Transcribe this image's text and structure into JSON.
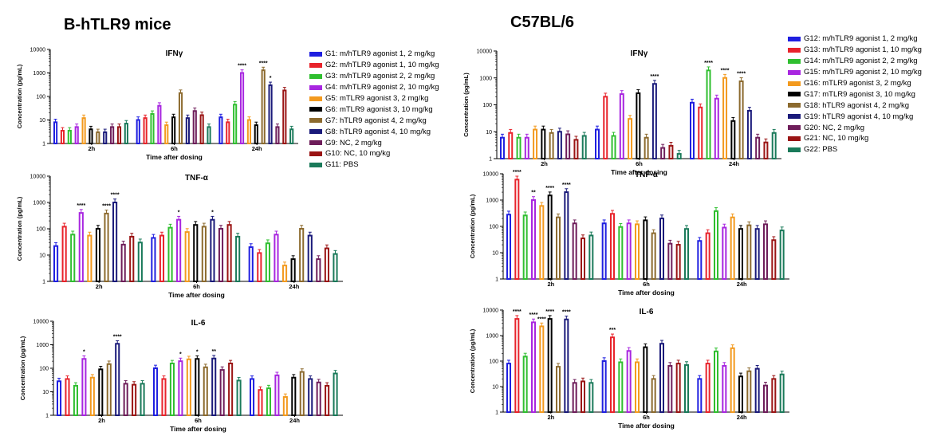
{
  "panel_titles": {
    "left": "B-hTLR9 mice",
    "right": "C57BL/6"
  },
  "legend_left": [
    {
      "label": "G1: m/hTLR9 agonist 1, 2 mg/kg",
      "color": "#1f1fe0"
    },
    {
      "label": "G2: m/hTLR9 agonist 1, 10 mg/kg",
      "color": "#e8232b"
    },
    {
      "label": "G3: m/hTLR9 agonist 2, 2 mg/kg",
      "color": "#2fbf2f"
    },
    {
      "label": "G4: m/hTLR9 agonist 2, 10 mg/kg",
      "color": "#a826e0"
    },
    {
      "label": "G5: mTLR9 agonist 3, 2 mg/kg",
      "color": "#f39a1e"
    },
    {
      "label": "G6: mTLR9 agonist 3, 10 mg/kg",
      "color": "#000000"
    },
    {
      "label": "G7: hTLR9 agonist 4, 2 mg/kg",
      "color": "#8c6a2e"
    },
    {
      "label": "G8: hTLR9 agonist 4, 10 mg/kg",
      "color": "#1a1a7a"
    },
    {
      "label": "G9: NC, 2 mg/kg",
      "color": "#6e1d5a"
    },
    {
      "label": "G10: NC, 10 mg/kg",
      "color": "#9a1414"
    },
    {
      "label": "G11: PBS",
      "color": "#1a7a5a"
    }
  ],
  "legend_right": [
    {
      "label": "G12: m/hTLR9 agonist 1, 2 mg/kg",
      "color": "#1f1fe0"
    },
    {
      "label": "G13: m/hTLR9 agonist 1, 10 mg/kg",
      "color": "#e8232b"
    },
    {
      "label": "G14: m/hTLR9 agonist 2, 2 mg/kg",
      "color": "#2fbf2f"
    },
    {
      "label": "G15: m/hTLR9 agonist 2, 10 mg/kg",
      "color": "#a826e0"
    },
    {
      "label": "G16: mTLR9 agonist 3, 2 mg/kg",
      "color": "#f39a1e"
    },
    {
      "label": "G17: mTLR9 agonist 3, 10 mg/kg",
      "color": "#000000"
    },
    {
      "label": "G18: hTLR9 agonist 4, 2 mg/kg",
      "color": "#8c6a2e"
    },
    {
      "label": "G19: hTLR9 agonist 4, 10 mg/kg",
      "color": "#1a1a7a"
    },
    {
      "label": "G20: NC, 2 mg/kg",
      "color": "#6e1d5a"
    },
    {
      "label": "G21: NC, 10 mg/kg",
      "color": "#9a1414"
    },
    {
      "label": "G22: PBS",
      "color": "#1a7a5a"
    }
  ],
  "chart_data": [
    {
      "type": "bar",
      "group": "B-hTLR9 mice",
      "title": "IFNγ",
      "xlabel": "Time after dosing",
      "ylabel": "Concentration (pg/mL)",
      "yscale": "log",
      "ylim": [
        1,
        10000
      ],
      "yticks": [
        "1",
        "10",
        "100",
        "1000",
        "10000"
      ],
      "categories": [
        "2h",
        "6h",
        "24h"
      ],
      "values": [
        [
          8,
          3.5,
          3.5,
          5,
          12,
          4,
          3,
          3,
          5,
          5,
          7
        ],
        [
          10,
          12,
          18,
          40,
          6,
          13,
          140,
          12,
          24,
          16,
          5
        ],
        [
          13,
          8,
          45,
          1000,
          10,
          6,
          1300,
          300,
          5,
          180,
          4
        ]
      ],
      "annotations": [
        {
          "category": "24h",
          "series": 3,
          "text": "****"
        },
        {
          "category": "24h",
          "series": 6,
          "text": "****"
        },
        {
          "category": "24h",
          "series": 7,
          "text": "*"
        }
      ]
    },
    {
      "type": "bar",
      "group": "B-hTLR9 mice",
      "title": "TNF-α",
      "xlabel": "Time after dosing",
      "ylabel": "Concentration (pg/mL)",
      "yscale": "log",
      "ylim": [
        1,
        10000
      ],
      "yticks": [
        "1",
        "10",
        "100",
        "1000",
        "10000"
      ],
      "categories": [
        "2h",
        "6h",
        "24h"
      ],
      "values": [
        [
          22,
          120,
          60,
          400,
          55,
          100,
          380,
          1000,
          25,
          50,
          30
        ],
        [
          45,
          55,
          110,
          220,
          75,
          140,
          120,
          220,
          100,
          140,
          50
        ],
        [
          20,
          12,
          28,
          60,
          4,
          7,
          100,
          55,
          7,
          18,
          11
        ]
      ],
      "annotations": [
        {
          "category": "2h",
          "series": 3,
          "text": "****"
        },
        {
          "category": "2h",
          "series": 6,
          "text": "****"
        },
        {
          "category": "2h",
          "series": 7,
          "text": "****"
        },
        {
          "category": "6h",
          "series": 3,
          "text": "*"
        },
        {
          "category": "6h",
          "series": 7,
          "text": "*"
        }
      ]
    },
    {
      "type": "bar",
      "group": "B-hTLR9 mice",
      "title": "IL-6",
      "xlabel": "Time after dosing",
      "ylabel": "Concentration (pg/mL)",
      "yscale": "log",
      "ylim": [
        1,
        10000
      ],
      "yticks": [
        "1",
        "10",
        "100",
        "1000",
        "10000"
      ],
      "categories": [
        "2h",
        "6h",
        "24h"
      ],
      "values": [
        [
          28,
          35,
          18,
          250,
          40,
          90,
          150,
          1100,
          22,
          20,
          22
        ],
        [
          100,
          35,
          160,
          200,
          240,
          250,
          110,
          260,
          85,
          160,
          30
        ],
        [
          35,
          12,
          14,
          50,
          6,
          40,
          70,
          35,
          25,
          18,
          60
        ]
      ],
      "annotations": [
        {
          "category": "2h",
          "series": 3,
          "text": "*"
        },
        {
          "category": "2h",
          "series": 7,
          "text": "****"
        },
        {
          "category": "6h",
          "series": 3,
          "text": "*"
        },
        {
          "category": "6h",
          "series": 5,
          "text": "*"
        },
        {
          "category": "6h",
          "series": 7,
          "text": "**"
        }
      ]
    },
    {
      "type": "bar",
      "group": "C57BL/6",
      "title": "IFNγ",
      "xlabel": "Time after dosing",
      "ylabel": "Concentration (pg/mL)",
      "yscale": "log",
      "ylim": [
        1,
        10000
      ],
      "yticks": [
        "1",
        "10",
        "100",
        "1000",
        "10000"
      ],
      "categories": [
        "2h",
        "6h",
        "24h"
      ],
      "values": [
        [
          6,
          9,
          6,
          6,
          12,
          12,
          9,
          10,
          8,
          5,
          7
        ],
        [
          12,
          200,
          7,
          250,
          30,
          270,
          6,
          600,
          2.5,
          3,
          1.5
        ],
        [
          120,
          80,
          1900,
          170,
          1000,
          25,
          750,
          60,
          6,
          4,
          9
        ]
      ],
      "annotations": [
        {
          "category": "6h",
          "series": 7,
          "text": "****"
        },
        {
          "category": "24h",
          "series": 2,
          "text": "****"
        },
        {
          "category": "24h",
          "series": 4,
          "text": "****"
        },
        {
          "category": "24h",
          "series": 6,
          "text": "****"
        }
      ]
    },
    {
      "type": "bar",
      "group": "C57BL/6",
      "title": "TNF-α",
      "xlabel": "Time after dosing",
      "ylabel": "Concentration (pg/mL)",
      "yscale": "log",
      "ylim": [
        1,
        10000
      ],
      "yticks": [
        "1",
        "10",
        "100",
        "1000",
        "10000"
      ],
      "categories": [
        "2h",
        "6h",
        "24h"
      ],
      "values": [
        [
          280,
          6000,
          260,
          1000,
          600,
          1500,
          220,
          2000,
          130,
          35,
          45
        ],
        [
          130,
          300,
          95,
          130,
          120,
          170,
          55,
          200,
          22,
          20,
          80
        ],
        [
          28,
          55,
          380,
          90,
          220,
          80,
          110,
          80,
          120,
          30,
          70
        ]
      ],
      "annotations": [
        {
          "category": "2h",
          "series": 1,
          "text": "****"
        },
        {
          "category": "2h",
          "series": 3,
          "text": "**"
        },
        {
          "category": "2h",
          "series": 5,
          "text": "****"
        },
        {
          "category": "2h",
          "series": 7,
          "text": "****"
        }
      ]
    },
    {
      "type": "bar",
      "group": "C57BL/6",
      "title": "IL-6",
      "xlabel": "Time after dosing",
      "ylabel": "Concentration (pg/mL)",
      "yscale": "log",
      "ylim": [
        1,
        10000
      ],
      "yticks": [
        "1",
        "10",
        "100",
        "1000",
        "10000"
      ],
      "categories": [
        "2h",
        "6h",
        "24h"
      ],
      "values": [
        [
          80,
          4500,
          150,
          3300,
          2300,
          4500,
          60,
          4300,
          14,
          16,
          14
        ],
        [
          100,
          850,
          90,
          250,
          90,
          350,
          20,
          480,
          65,
          80,
          70
        ],
        [
          20,
          80,
          240,
          65,
          320,
          25,
          40,
          50,
          11,
          20,
          30
        ]
      ],
      "annotations": [
        {
          "category": "2h",
          "series": 1,
          "text": "****"
        },
        {
          "category": "2h",
          "series": 3,
          "text": "****"
        },
        {
          "category": "2h",
          "series": 4,
          "text": "****"
        },
        {
          "category": "2h",
          "series": 5,
          "text": "****"
        },
        {
          "category": "2h",
          "series": 7,
          "text": "****"
        },
        {
          "category": "6h",
          "series": 1,
          "text": "***"
        }
      ]
    }
  ]
}
